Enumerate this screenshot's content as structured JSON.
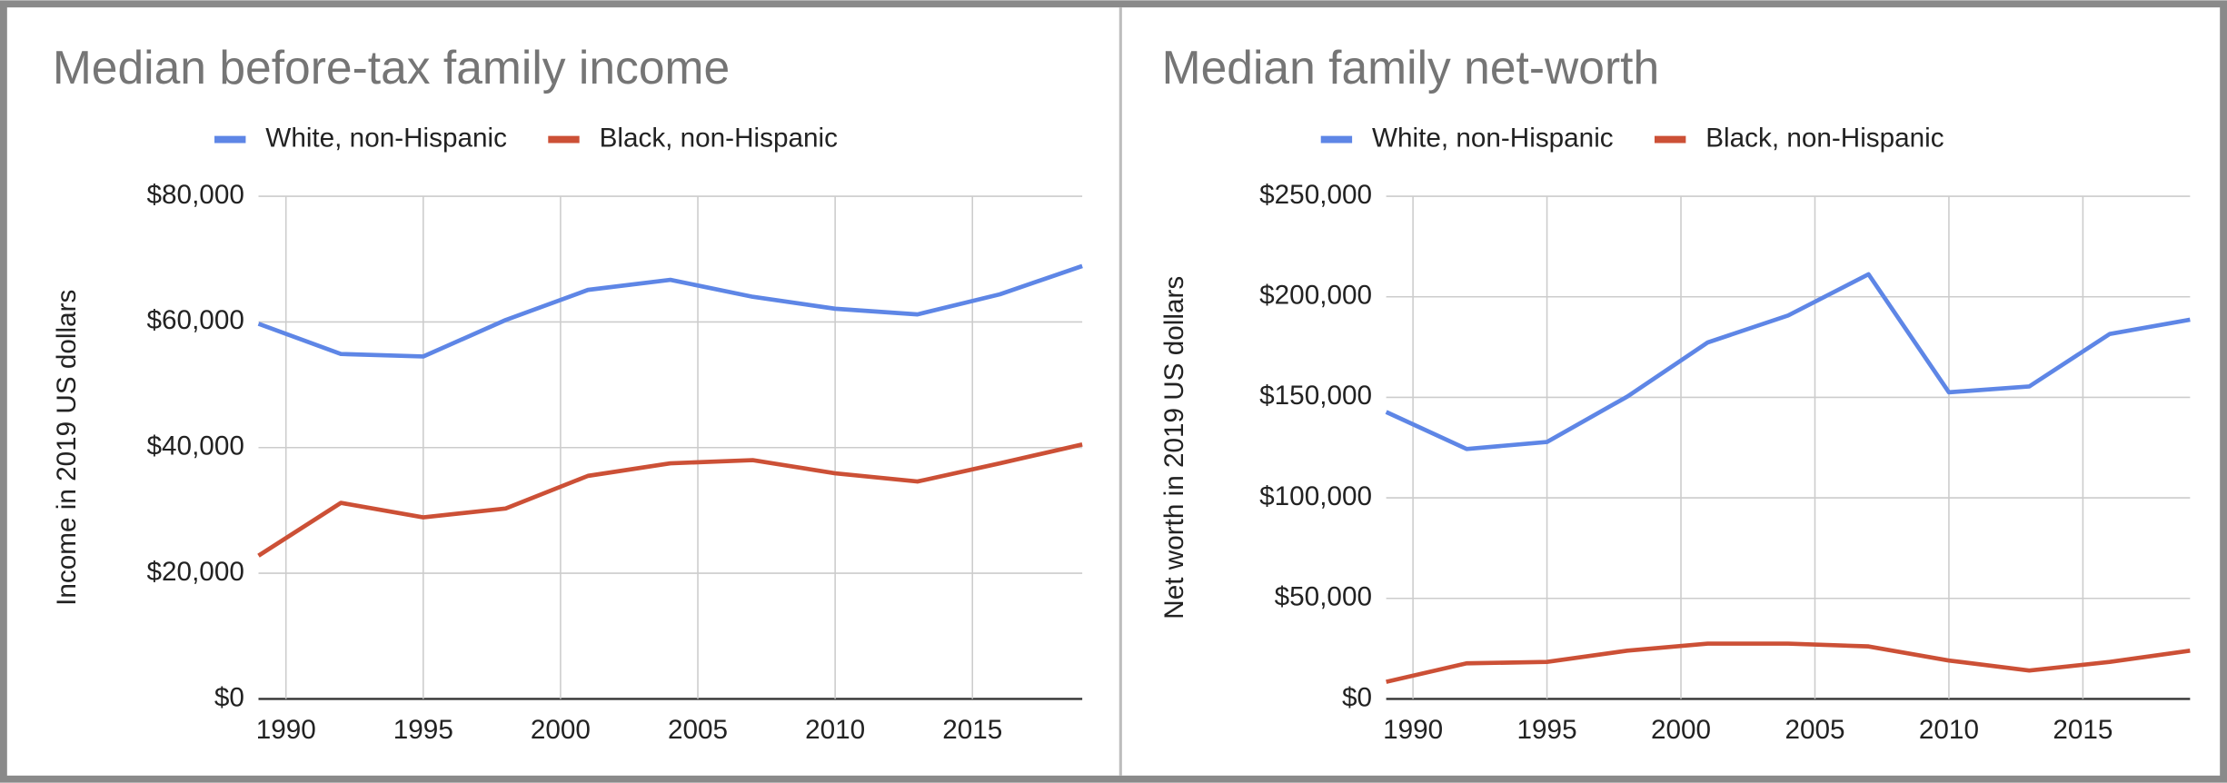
{
  "chart_data": [
    {
      "type": "line",
      "title": "Median before-tax family income",
      "y_label": "Income in 2019 US dollars",
      "x": [
        1989,
        1992,
        1995,
        1998,
        2001,
        2004,
        2007,
        2010,
        2013,
        2016,
        2019
      ],
      "xlim": [
        1989,
        2019
      ],
      "xticks": [
        1990,
        1995,
        2000,
        2005,
        2010,
        2015
      ],
      "ylim": [
        0,
        80000
      ],
      "yticks": [
        {
          "value": 0,
          "label": "$0"
        },
        {
          "value": 20000,
          "label": "$20,000"
        },
        {
          "value": 40000,
          "label": "$40,000"
        },
        {
          "value": 60000,
          "label": "$60,000"
        },
        {
          "value": 80000,
          "label": "$80,000"
        }
      ],
      "grid": true,
      "series": [
        {
          "name": "White, non-Hispanic",
          "color": "#5e86e6",
          "values": [
            59700,
            54900,
            54500,
            60300,
            65100,
            66700,
            64000,
            62100,
            61200,
            64400,
            68900
          ]
        },
        {
          "name": "Black, non-Hispanic",
          "color": "#cc5036",
          "values": [
            22800,
            31200,
            28900,
            30300,
            35500,
            37500,
            38000,
            35900,
            34600,
            37500,
            40500
          ]
        }
      ]
    },
    {
      "type": "line",
      "title": "Median family net-worth",
      "y_label": "Net worth in 2019 US dollars",
      "x": [
        1989,
        1992,
        1995,
        1998,
        2001,
        2004,
        2007,
        2010,
        2013,
        2016,
        2019
      ],
      "xlim": [
        1989,
        2019
      ],
      "xticks": [
        1990,
        1995,
        2000,
        2005,
        2010,
        2015
      ],
      "ylim": [
        0,
        250000
      ],
      "yticks": [
        {
          "value": 0,
          "label": "$0"
        },
        {
          "value": 50000,
          "label": "$50,000"
        },
        {
          "value": 100000,
          "label": "$100,000"
        },
        {
          "value": 150000,
          "label": "$150,000"
        },
        {
          "value": 200000,
          "label": "$200,000"
        },
        {
          "value": 250000,
          "label": "$250,000"
        }
      ],
      "grid": true,
      "series": [
        {
          "name": "White, non-Hispanic",
          "color": "#5e86e6",
          "values": [
            142700,
            124300,
            127800,
            150400,
            177300,
            190700,
            211200,
            152500,
            155400,
            181500,
            188600
          ]
        },
        {
          "name": "Black, non-Hispanic",
          "color": "#cc5036",
          "values": [
            8500,
            17700,
            18400,
            24000,
            27500,
            27500,
            26100,
            19100,
            14100,
            18400,
            24000
          ]
        }
      ]
    }
  ]
}
